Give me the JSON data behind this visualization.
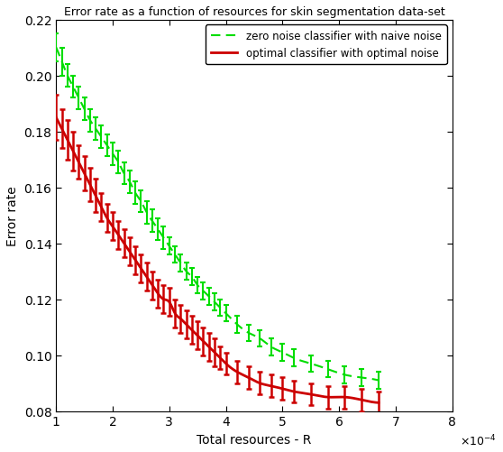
{
  "title": "Error rate as a function of resources for skin segmentation data-set",
  "xlabel": "Total resources - R",
  "ylabel": "Error rate",
  "xlim": [
    0.0001,
    0.0008
  ],
  "ylim": [
    0.08,
    0.22
  ],
  "xtick_labels": [
    "1",
    "2",
    "3",
    "4",
    "5",
    "6",
    "7",
    "8"
  ],
  "green_color": "#00dd00",
  "red_color": "#cc0000",
  "legend_entries": [
    "zero noise classifier with naive noise",
    "optimal classifier with optimal noise"
  ],
  "green_x": [
    1.0,
    1.1,
    1.2,
    1.3,
    1.4,
    1.5,
    1.6,
    1.7,
    1.8,
    1.9,
    2.0,
    2.1,
    2.2,
    2.3,
    2.4,
    2.5,
    2.6,
    2.7,
    2.8,
    2.9,
    3.0,
    3.1,
    3.2,
    3.3,
    3.4,
    3.5,
    3.6,
    3.7,
    3.8,
    3.9,
    4.0,
    4.2,
    4.4,
    4.6,
    4.8,
    5.0,
    5.2,
    5.5,
    5.8,
    6.1,
    6.4,
    6.7
  ],
  "green_y": [
    0.21,
    0.205,
    0.2,
    0.196,
    0.192,
    0.188,
    0.184,
    0.181,
    0.178,
    0.175,
    0.172,
    0.169,
    0.165,
    0.162,
    0.158,
    0.155,
    0.151,
    0.148,
    0.145,
    0.142,
    0.139,
    0.136,
    0.133,
    0.13,
    0.128,
    0.125,
    0.123,
    0.121,
    0.119,
    0.117,
    0.115,
    0.111,
    0.108,
    0.106,
    0.103,
    0.101,
    0.099,
    0.097,
    0.095,
    0.093,
    0.092,
    0.091
  ],
  "green_yerr": [
    0.005,
    0.005,
    0.004,
    0.004,
    0.004,
    0.004,
    0.004,
    0.004,
    0.004,
    0.004,
    0.004,
    0.004,
    0.004,
    0.004,
    0.004,
    0.004,
    0.004,
    0.004,
    0.004,
    0.004,
    0.003,
    0.003,
    0.003,
    0.003,
    0.003,
    0.003,
    0.003,
    0.003,
    0.003,
    0.003,
    0.003,
    0.003,
    0.003,
    0.003,
    0.003,
    0.003,
    0.003,
    0.003,
    0.003,
    0.003,
    0.003,
    0.003
  ],
  "red_x": [
    1.0,
    1.1,
    1.2,
    1.3,
    1.4,
    1.5,
    1.6,
    1.7,
    1.8,
    1.9,
    2.0,
    2.1,
    2.2,
    2.3,
    2.4,
    2.5,
    2.6,
    2.7,
    2.8,
    2.9,
    3.0,
    3.1,
    3.2,
    3.3,
    3.4,
    3.5,
    3.6,
    3.7,
    3.8,
    3.9,
    4.0,
    4.2,
    4.4,
    4.6,
    4.8,
    5.0,
    5.2,
    5.5,
    5.8,
    6.1,
    6.4,
    6.7
  ],
  "red_y": [
    0.185,
    0.181,
    0.177,
    0.173,
    0.169,
    0.165,
    0.161,
    0.157,
    0.153,
    0.149,
    0.146,
    0.143,
    0.14,
    0.137,
    0.134,
    0.131,
    0.128,
    0.125,
    0.122,
    0.12,
    0.119,
    0.115,
    0.113,
    0.111,
    0.109,
    0.107,
    0.105,
    0.103,
    0.101,
    0.099,
    0.097,
    0.094,
    0.092,
    0.09,
    0.089,
    0.088,
    0.087,
    0.086,
    0.085,
    0.085,
    0.084,
    0.083
  ],
  "red_yerr": [
    0.008,
    0.007,
    0.007,
    0.007,
    0.006,
    0.006,
    0.006,
    0.006,
    0.005,
    0.005,
    0.005,
    0.005,
    0.005,
    0.005,
    0.005,
    0.005,
    0.005,
    0.005,
    0.005,
    0.005,
    0.005,
    0.005,
    0.005,
    0.005,
    0.005,
    0.005,
    0.005,
    0.005,
    0.005,
    0.004,
    0.004,
    0.004,
    0.004,
    0.004,
    0.004,
    0.004,
    0.004,
    0.004,
    0.004,
    0.004,
    0.004,
    0.004
  ]
}
